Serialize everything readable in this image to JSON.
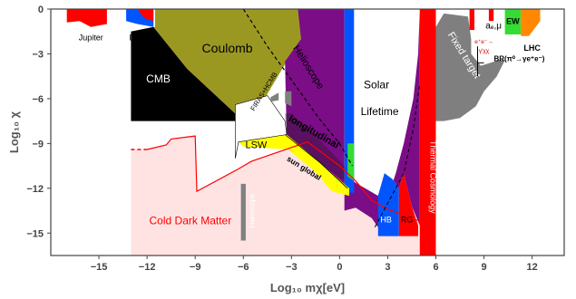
{
  "chart_data": {
    "type": "area",
    "title": "",
    "xlabel": "Log₁₀ mχ[eV]",
    "ylabel": "Log₁₀ χ",
    "xlim": [
      -18,
      14
    ],
    "ylim": [
      -16.5,
      0
    ],
    "x_ticks": [
      -15,
      -12,
      -9,
      -6,
      -3,
      0,
      3,
      6,
      9,
      12
    ],
    "y_ticks": [
      0,
      -3,
      -6,
      -9,
      -12,
      -15
    ],
    "grid": false,
    "colors": {
      "coulomb": "#9b9822",
      "solar": "#7b0d86",
      "fixed_target": "#7f7f7f",
      "thermal": "#ff0000",
      "cmb": "#000000",
      "dark_matter": "#ffe3e3",
      "sun_global": "#ffff00",
      "blue": "#0055ff",
      "green": "#33dd33",
      "orange": "#ff8800"
    },
    "regions": [
      {
        "name": "Jupiter",
        "x": [
          -17,
          -14.5
        ],
        "ymin": -1.2,
        "ymax": 0
      },
      {
        "name": "Earth",
        "x": [
          -13.3,
          -11.6
        ],
        "ymin": -1.2,
        "ymax": 0
      },
      {
        "name": "CMB",
        "x": [
          -13,
          -5
        ],
        "ymin": -7.5,
        "ymax": -1.5
      },
      {
        "name": "Coulomb",
        "x": [
          -11.5,
          -2.4
        ],
        "ymin": -7.5,
        "ymax": 0
      },
      {
        "name": "FIRAS+HCMB",
        "x": [
          -5.5,
          -3.4
        ],
        "ymin": -7.5,
        "ymax": -4
      },
      {
        "name": "Solar Lifetime",
        "x": [
          -3.3,
          5
        ],
        "ymin": -14.6,
        "ymax": 0
      },
      {
        "name": "Helioscope",
        "x": [
          -3.5,
          0
        ],
        "ymin": -6.5,
        "ymax": -1
      },
      {
        "name": "longitudinal",
        "x": [
          -3.4,
          0.5
        ],
        "ymin": -11.5,
        "ymax": -6.5
      },
      {
        "name": "sun global",
        "x": [
          -6.3,
          0.8
        ],
        "ymin": -12.5,
        "ymax": -8.9
      },
      {
        "name": "LSW",
        "x": [
          -6.5,
          -2
        ],
        "ymin": -10,
        "ymax": -5.8
      },
      {
        "name": "Haloscope",
        "x": [
          -6.1,
          -5.9
        ],
        "ymin": -15.5,
        "ymax": -11.7
      },
      {
        "name": "HB",
        "x": [
          2.4,
          3.7
        ],
        "ymin": -15.2,
        "ymax": -11.5
      },
      {
        "name": "RG",
        "x": [
          3.7,
          4.9
        ],
        "ymin": -15.2,
        "ymax": -12.8
      },
      {
        "name": "Thermal Cosmology",
        "x": [
          5,
          6
        ],
        "ymin": -16.5,
        "ymax": 0
      },
      {
        "name": "Fixed target",
        "x": [
          6,
          10.3
        ],
        "ymin": -7.5,
        "ymax": 0
      },
      {
        "name": "EW",
        "x": [
          10.3,
          11.3
        ],
        "ymin": -1.7,
        "ymax": 0
      },
      {
        "name": "LHC",
        "x": [
          11.3,
          12.5
        ],
        "ymin": -2,
        "ymax": 0
      },
      {
        "name": "Cold Dark Matter",
        "x": [
          -13,
          6
        ],
        "ymin": -16.5,
        "ymax": -8.4
      }
    ],
    "annotations": [
      "Jupiter",
      "Earth",
      "CMB",
      "Coulomb",
      "FIRAS+HCMB",
      "Helioscope",
      "Solar",
      "Lifetime",
      "longitudinal",
      "sun global",
      "LSW",
      "Haloscope",
      "HB",
      "RG",
      "Thermal Cosmology",
      "Fixed target",
      "aₑ,μ",
      "BR(π⁰→γe⁺e⁻)",
      "EW",
      "LHC",
      "Cold Dark Matter",
      "e⁺e⁻→",
      "γ′χχ"
    ],
    "dark_matter_curve": {
      "x": [
        -13,
        -12,
        -10.8,
        -10.5,
        -9,
        -8.9,
        -6.3,
        -5.5,
        -2,
        0,
        1,
        2,
        3,
        4,
        5,
        6
      ],
      "y": [
        -9.4,
        -9.4,
        -9.1,
        -8.7,
        -8.5,
        -12.2,
        -10.7,
        -10.2,
        -8.9,
        -10.5,
        -11.5,
        -12.8,
        -13.4,
        -13.8,
        -14.2,
        -16.5
      ]
    }
  }
}
